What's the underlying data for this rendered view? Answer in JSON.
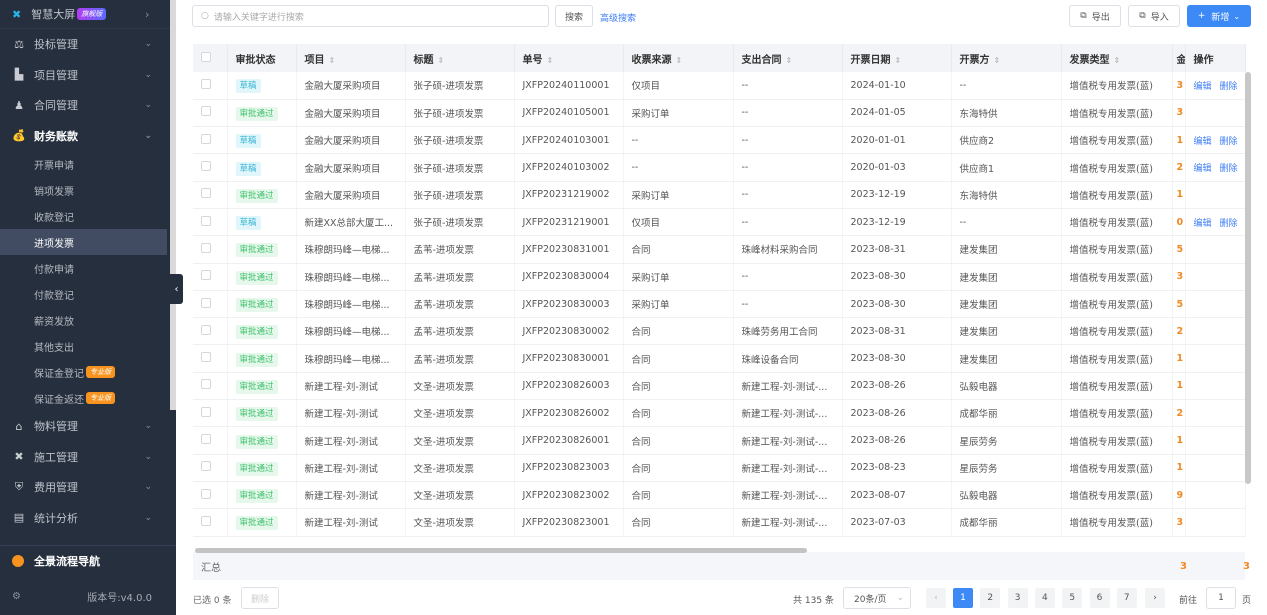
{
  "sidebar": {
    "top": {
      "label": "智慧大屏",
      "badge": "旗舰版"
    },
    "menus": [
      {
        "label": "投标管理",
        "icon": "gavel-icon",
        "g": "⚖"
      },
      {
        "label": "项目管理",
        "icon": "building-icon",
        "g": "▙"
      },
      {
        "label": "合同管理",
        "icon": "stamp-icon",
        "g": "♟"
      },
      {
        "label": "财务账款",
        "icon": "money-bag-icon",
        "g": "💰"
      }
    ],
    "sub": [
      {
        "label": "开票申请"
      },
      {
        "label": "销项发票"
      },
      {
        "label": "收款登记"
      },
      {
        "label": "进项发票",
        "active": true
      },
      {
        "label": "付款申请"
      },
      {
        "label": "付款登记"
      },
      {
        "label": "薪资发放"
      },
      {
        "label": "其他支出"
      },
      {
        "label": "保证金登记",
        "badge": "专业版"
      },
      {
        "label": "保证金返还",
        "badge": "专业版"
      }
    ],
    "menus2": [
      {
        "label": "物料管理",
        "icon": "warehouse-icon",
        "g": "⌂"
      },
      {
        "label": "施工管理",
        "icon": "tools-icon",
        "g": "✖"
      },
      {
        "label": "费用管理",
        "icon": "shield-icon",
        "g": "⛨"
      },
      {
        "label": "统计分析",
        "icon": "chart-icon",
        "g": "▤"
      }
    ],
    "nav": "全景流程导航",
    "version": "版本号:v4.0.0"
  },
  "toolbar": {
    "search_placeholder": "请输入关键字进行搜索",
    "search": "搜索",
    "advanced": "高级搜索",
    "export": "导出",
    "import": "导入",
    "add": "新增"
  },
  "table": {
    "columns": [
      "审批状态",
      "项目",
      "标题",
      "单号",
      "收票来源",
      "支出合同",
      "开票日期",
      "开票方",
      "发票类型",
      "金",
      "操作"
    ],
    "ops": {
      "edit": "编辑",
      "delete": "删除"
    },
    "rows": [
      [
        "草稿",
        "金融大厦采购项目",
        "张子硕-进项发票",
        "JXFP20240110001",
        "仅项目",
        "--",
        "2024-01-10",
        "--",
        "增值税专用发票(蓝)",
        "3",
        true
      ],
      [
        "审批通过",
        "金融大厦采购项目",
        "张子硕-进项发票",
        "JXFP20240105001",
        "采购订单",
        "--",
        "2024-01-05",
        "东海特供",
        "增值税专用发票(蓝)",
        "3",
        false
      ],
      [
        "草稿",
        "金融大厦采购项目",
        "张子硕-进项发票",
        "JXFP20240103001",
        "--",
        "--",
        "2020-01-01",
        "供应商2",
        "增值税专用发票(蓝)",
        "1",
        true
      ],
      [
        "草稿",
        "金融大厦采购项目",
        "张子硕-进项发票",
        "JXFP20240103002",
        "--",
        "--",
        "2020-01-03",
        "供应商1",
        "增值税专用发票(蓝)",
        "2",
        true
      ],
      [
        "审批通过",
        "金融大厦采购项目",
        "张子硕-进项发票",
        "JXFP20231219002",
        "采购订单",
        "--",
        "2023-12-19",
        "东海特供",
        "增值税专用发票(蓝)",
        "1",
        false
      ],
      [
        "草稿",
        "新建XX总部大厦工...",
        "张子硕-进项发票",
        "JXFP20231219001",
        "仅项目",
        "--",
        "2023-12-19",
        "--",
        "增值税专用发票(蓝)",
        "0",
        true
      ],
      [
        "审批通过",
        "珠穆朗玛峰—电梯...",
        "孟苇-进项发票",
        "JXFP20230831001",
        "合同",
        "珠峰材料采购合同",
        "2023-08-31",
        "建发集团",
        "增值税专用发票(蓝)",
        "5",
        false
      ],
      [
        "审批通过",
        "珠穆朗玛峰—电梯...",
        "孟苇-进项发票",
        "JXFP20230830004",
        "采购订单",
        "--",
        "2023-08-30",
        "建发集团",
        "增值税专用发票(蓝)",
        "3",
        false
      ],
      [
        "审批通过",
        "珠穆朗玛峰—电梯...",
        "孟苇-进项发票",
        "JXFP20230830003",
        "采购订单",
        "--",
        "2023-08-30",
        "建发集团",
        "增值税专用发票(蓝)",
        "5",
        false
      ],
      [
        "审批通过",
        "珠穆朗玛峰—电梯...",
        "孟苇-进项发票",
        "JXFP20230830002",
        "合同",
        "珠峰劳务用工合同",
        "2023-08-31",
        "建发集团",
        "增值税专用发票(蓝)",
        "2",
        false
      ],
      [
        "审批通过",
        "珠穆朗玛峰—电梯...",
        "孟苇-进项发票",
        "JXFP20230830001",
        "合同",
        "珠峰设备合同",
        "2023-08-30",
        "建发集团",
        "增值税专用发票(蓝)",
        "1",
        false
      ],
      [
        "审批通过",
        "新建工程-刘-测试",
        "文圣-进项发票",
        "JXFP20230826003",
        "合同",
        "新建工程-刘-测试-...",
        "2023-08-26",
        "弘毅电器",
        "增值税专用发票(蓝)",
        "1",
        false
      ],
      [
        "审批通过",
        "新建工程-刘-测试",
        "文圣-进项发票",
        "JXFP20230826002",
        "合同",
        "新建工程-刘-测试-...",
        "2023-08-26",
        "成都华丽",
        "增值税专用发票(蓝)",
        "2",
        false
      ],
      [
        "审批通过",
        "新建工程-刘-测试",
        "文圣-进项发票",
        "JXFP20230826001",
        "合同",
        "新建工程-刘-测试-...",
        "2023-08-26",
        "星辰劳务",
        "增值税专用发票(蓝)",
        "1",
        false
      ],
      [
        "审批通过",
        "新建工程-刘-测试",
        "文圣-进项发票",
        "JXFP20230823003",
        "合同",
        "新建工程-刘-测试-...",
        "2023-08-23",
        "星辰劳务",
        "增值税专用发票(蓝)",
        "1",
        false
      ],
      [
        "审批通过",
        "新建工程-刘-测试",
        "文圣-进项发票",
        "JXFP20230823002",
        "合同",
        "新建工程-刘-测试-...",
        "2023-08-07",
        "弘毅电器",
        "增值税专用发票(蓝)",
        "9",
        false
      ],
      [
        "审批通过",
        "新建工程-刘-测试",
        "文圣-进项发票",
        "JXFP20230823001",
        "合同",
        "新建工程-刘-测试-...",
        "2023-07-03",
        "成都华丽",
        "增值税专用发票(蓝)",
        "3",
        false
      ]
    ],
    "total_label": "汇总",
    "total_a": "3",
    "total_b": "3"
  },
  "footer": {
    "selected": "已选 0 条",
    "delete": "删除",
    "total": "共 135 条",
    "page_size": "20条/页",
    "pages": [
      "1",
      "2",
      "3",
      "4",
      "5",
      "6",
      "7"
    ],
    "goto": "前往",
    "goto_value": "1",
    "page_unit": "页"
  },
  "colors": {
    "accent": "#3d8af7",
    "sidebar": "#262f3e",
    "amount": "#f08a24"
  }
}
